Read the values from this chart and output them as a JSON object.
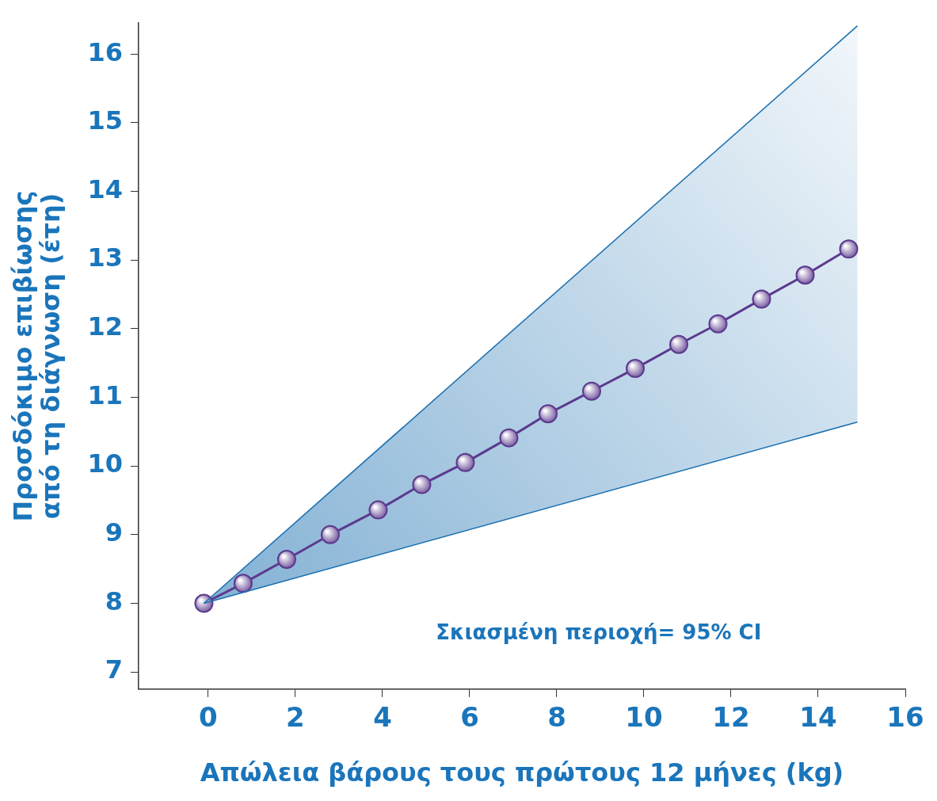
{
  "chart_data": {
    "type": "line",
    "xlabel": "Απώλεια βάρους τους πρώτους 12 μήνες (kg)",
    "ylabel": "Προσδόκιμο επιβίωσης από τη διάγνωση (έτη)",
    "xlim": [
      -1.6,
      16
    ],
    "xticks": [
      0,
      2,
      4,
      6,
      8,
      10,
      12,
      14,
      16
    ],
    "ylim": [
      6.75,
      16.45
    ],
    "yticks": [
      7,
      8,
      9,
      10,
      11,
      12,
      13,
      14,
      15,
      16
    ],
    "grid": false,
    "legend": false,
    "annotations": [
      "Σκιασμένη περιοχή= 95% CI"
    ],
    "series": [
      {
        "type": "line",
        "color": "#1a6fb0",
        "marker": "none",
        "x": [
          -0.1,
          14.9
        ],
        "values": [
          8,
          16.41
        ]
      },
      {
        "type": "line",
        "color": "#1a6fb0",
        "marker": "none",
        "x": [
          -0.1,
          14.9
        ],
        "values": [
          8,
          10.64
        ],
        "lower": [
          8,
          10.64
        ],
        "upper": [
          8,
          16.41
        ]
      },
      {
        "type": "line",
        "color": "#5b3a8e",
        "marker": "circle",
        "x": [
          -0.1,
          0.8,
          1.8,
          2.8,
          3.9,
          4.9,
          5.9,
          6.9,
          7.8,
          8.8,
          9.8,
          10.8,
          11.7,
          12.7,
          13.7,
          14.7
        ],
        "values": [
          8.0,
          8.29,
          8.64,
          9.0,
          9.36,
          9.73,
          10.05,
          10.41,
          10.76,
          11.09,
          11.42,
          11.77,
          12.07,
          12.43,
          12.78,
          13.16
        ]
      }
    ]
  }
}
